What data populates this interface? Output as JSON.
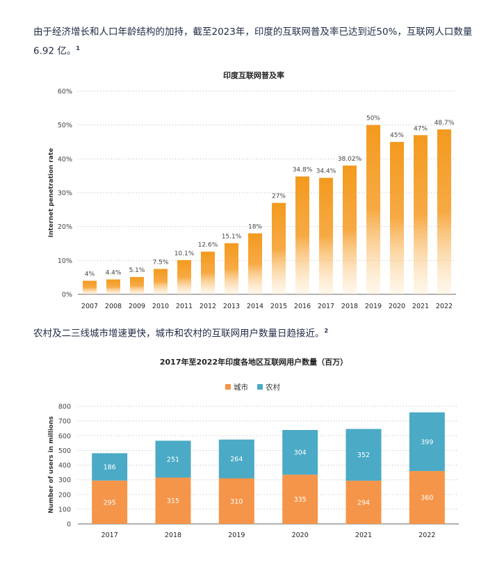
{
  "text": {
    "para1": "由于经济增长和人口年龄结构的加持，截至2023年，印度的互联网普及率已达到近50%，互联网人口数量 6.92 亿。",
    "para1_note": "1",
    "para2": "农村及二三线城市增速更快，城市和农村的互联网用户数量日趋接近。",
    "para2_note": "2"
  },
  "chart_data": [
    {
      "type": "bar",
      "title": "印度互联网普及率",
      "ylabel": "Internet penetration rate",
      "xlabel": "",
      "ylim": [
        0,
        60
      ],
      "yticks": [
        "0%",
        "10%",
        "20%",
        "30%",
        "40%",
        "50%",
        "60%"
      ],
      "grid": true,
      "color": "#f39a1e",
      "categories": [
        "2007",
        "2008",
        "2009",
        "2010",
        "2011",
        "2012",
        "2013",
        "2014",
        "2015",
        "2016",
        "2017",
        "2018",
        "2019",
        "2020",
        "2021",
        "2022"
      ],
      "values": [
        4,
        4.4,
        5.1,
        7.5,
        10.1,
        12.6,
        15.1,
        18,
        27,
        34.8,
        34.4,
        38.02,
        50,
        45,
        47,
        48.7
      ],
      "labels": [
        "4%",
        "4.4%",
        "5.1%",
        "7.5%",
        "10.1%",
        "12.6%",
        "15.1%",
        "18%",
        "27%",
        "34.8%",
        "34.4%",
        "38.02%",
        "50%",
        "45%",
        "47%",
        "48.7%"
      ]
    },
    {
      "type": "bar",
      "stacked": true,
      "title": "2017年至2022年印度各地区互联网用户数量（百万）",
      "ylabel": "Number of users in millions",
      "xlabel": "",
      "ylim": [
        0,
        800
      ],
      "yticks": [
        "0",
        "100",
        "200",
        "300",
        "400",
        "500",
        "600",
        "700",
        "800"
      ],
      "grid": true,
      "legend": "top-center",
      "categories": [
        "2017",
        "2018",
        "2019",
        "2020",
        "2021",
        "2022"
      ],
      "series": [
        {
          "name": "城市",
          "color": "#f5954a",
          "values": [
            295,
            315,
            310,
            335,
            294,
            360
          ]
        },
        {
          "name": "农村",
          "color": "#4baac6",
          "values": [
            186,
            251,
            264,
            304,
            352,
            399
          ]
        }
      ]
    }
  ]
}
